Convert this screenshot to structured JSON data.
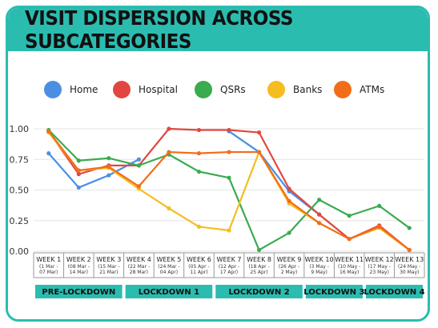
{
  "title": "VISIT DISPERSION ACROSS SUBCATEGORIES",
  "colors": {
    "accent": "#2bbcb0",
    "grid": "#e6e6e6",
    "axis": "#999999"
  },
  "chart_data": {
    "type": "line",
    "title": "VISIT DISPERSION ACROSS SUBCATEGORIES",
    "ylim": [
      0,
      1
    ],
    "yticks": [
      "0.00",
      "0.25",
      "0.50",
      "0.75",
      "1.00"
    ],
    "grid": true,
    "legend_position": "top",
    "categories": [
      {
        "week": "WEEK 1",
        "dates": "(1 Mar - 07 Mar)"
      },
      {
        "week": "WEEK 2",
        "dates": "(08 Mar - 14 Mar)"
      },
      {
        "week": "WEEK 3",
        "dates": "(15 Mar - 21 Mar)"
      },
      {
        "week": "WEEK 4",
        "dates": "(22 Mar - 28 Mar)"
      },
      {
        "week": "WEEK 5",
        "dates": "(24 Mar - 04 Apr)"
      },
      {
        "week": "WEEK 6",
        "dates": "(05 Apr - 11 Apr)"
      },
      {
        "week": "WEEK 7",
        "dates": "(12 Apr - 17 Apr)"
      },
      {
        "week": "WEEK 8",
        "dates": "(18 Apr - 25 Apr)"
      },
      {
        "week": "WEEK 9",
        "dates": "(26 Apr - 2 May)"
      },
      {
        "week": "WEEK 10",
        "dates": "(3 May - 9 May)"
      },
      {
        "week": "WEEK 11",
        "dates": "(10 May - 16 May)"
      },
      {
        "week": "WEEK 12",
        "dates": "(17 May - 23 May)"
      },
      {
        "week": "WEEK 13",
        "dates": "(24 May - 30 May)"
      }
    ],
    "series": [
      {
        "name": "Home",
        "color": "#4a8fe3",
        "values": [
          0.8,
          0.52,
          0.62,
          0.75,
          null,
          null,
          0.98,
          0.81,
          0.49,
          0.3,
          0.1,
          0.2,
          0.01
        ]
      },
      {
        "name": "Hospital",
        "color": "#e2473f",
        "values": [
          0.98,
          0.63,
          0.7,
          0.7,
          1.0,
          0.99,
          0.99,
          0.97,
          0.51,
          0.3,
          0.1,
          0.21,
          0.01
        ]
      },
      {
        "name": "QSRs",
        "color": "#3aab4f",
        "values": [
          0.99,
          0.74,
          0.76,
          0.7,
          0.79,
          0.65,
          0.6,
          0.01,
          0.15,
          0.42,
          0.29,
          0.37,
          0.19
        ]
      },
      {
        "name": "Banks",
        "color": "#f5bd1f",
        "values": [
          0.97,
          0.66,
          0.68,
          0.51,
          0.35,
          0.2,
          0.17,
          0.81,
          0.39,
          0.23,
          0.1,
          0.19,
          0.01
        ]
      },
      {
        "name": "ATMs",
        "color": "#f26d1a",
        "values": [
          0.98,
          0.66,
          0.69,
          0.53,
          0.81,
          0.8,
          0.81,
          0.81,
          0.41,
          0.23,
          0.1,
          0.2,
          0.01
        ]
      }
    ],
    "phases": [
      {
        "label": "PRE-LOCKDOWN",
        "start": 1,
        "end": 3
      },
      {
        "label": "LOCKDOWN 1",
        "start": 4,
        "end": 6
      },
      {
        "label": "LOCKDOWN 2",
        "start": 7,
        "end": 9
      },
      {
        "label": "LOCKDOWN 3",
        "start": 10,
        "end": 11
      },
      {
        "label": "LOCKDOWN 4",
        "start": 12,
        "end": 13
      }
    ]
  }
}
